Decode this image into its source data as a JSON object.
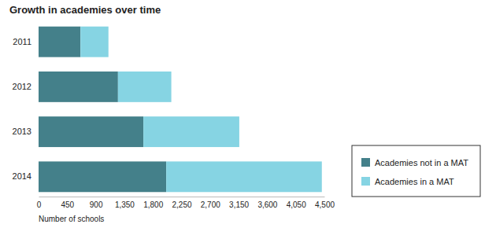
{
  "chart_data": {
    "type": "bar",
    "orientation": "horizontal",
    "stacked": true,
    "title": "Growth in academies over time",
    "x_label": "Number of schools",
    "categories": [
      "2011",
      "2012",
      "2013",
      "2014"
    ],
    "series": [
      {
        "name": "Academies not in a MAT",
        "color": "#44808a",
        "values": [
          660,
          1250,
          1650,
          2010
        ]
      },
      {
        "name": "Academies in a MAT",
        "color": "#86d4e3",
        "values": [
          440,
          840,
          1510,
          2450
        ]
      }
    ],
    "xlim": [
      0,
      4500
    ],
    "xticks": [
      0,
      450,
      900,
      {
        "value": 1350,
        "label": "1,350"
      },
      {
        "value": 1800,
        "label": "1,800"
      },
      {
        "value": 2250,
        "label": "2,250"
      },
      {
        "value": 2700,
        "label": "2,700"
      },
      {
        "value": 3150,
        "label": "3,150"
      },
      {
        "value": 3600,
        "label": "3,600"
      },
      {
        "value": 4050,
        "label": "4,050"
      },
      {
        "value": 4500,
        "label": "4,500"
      }
    ],
    "grid": false,
    "legend": "lower right"
  }
}
